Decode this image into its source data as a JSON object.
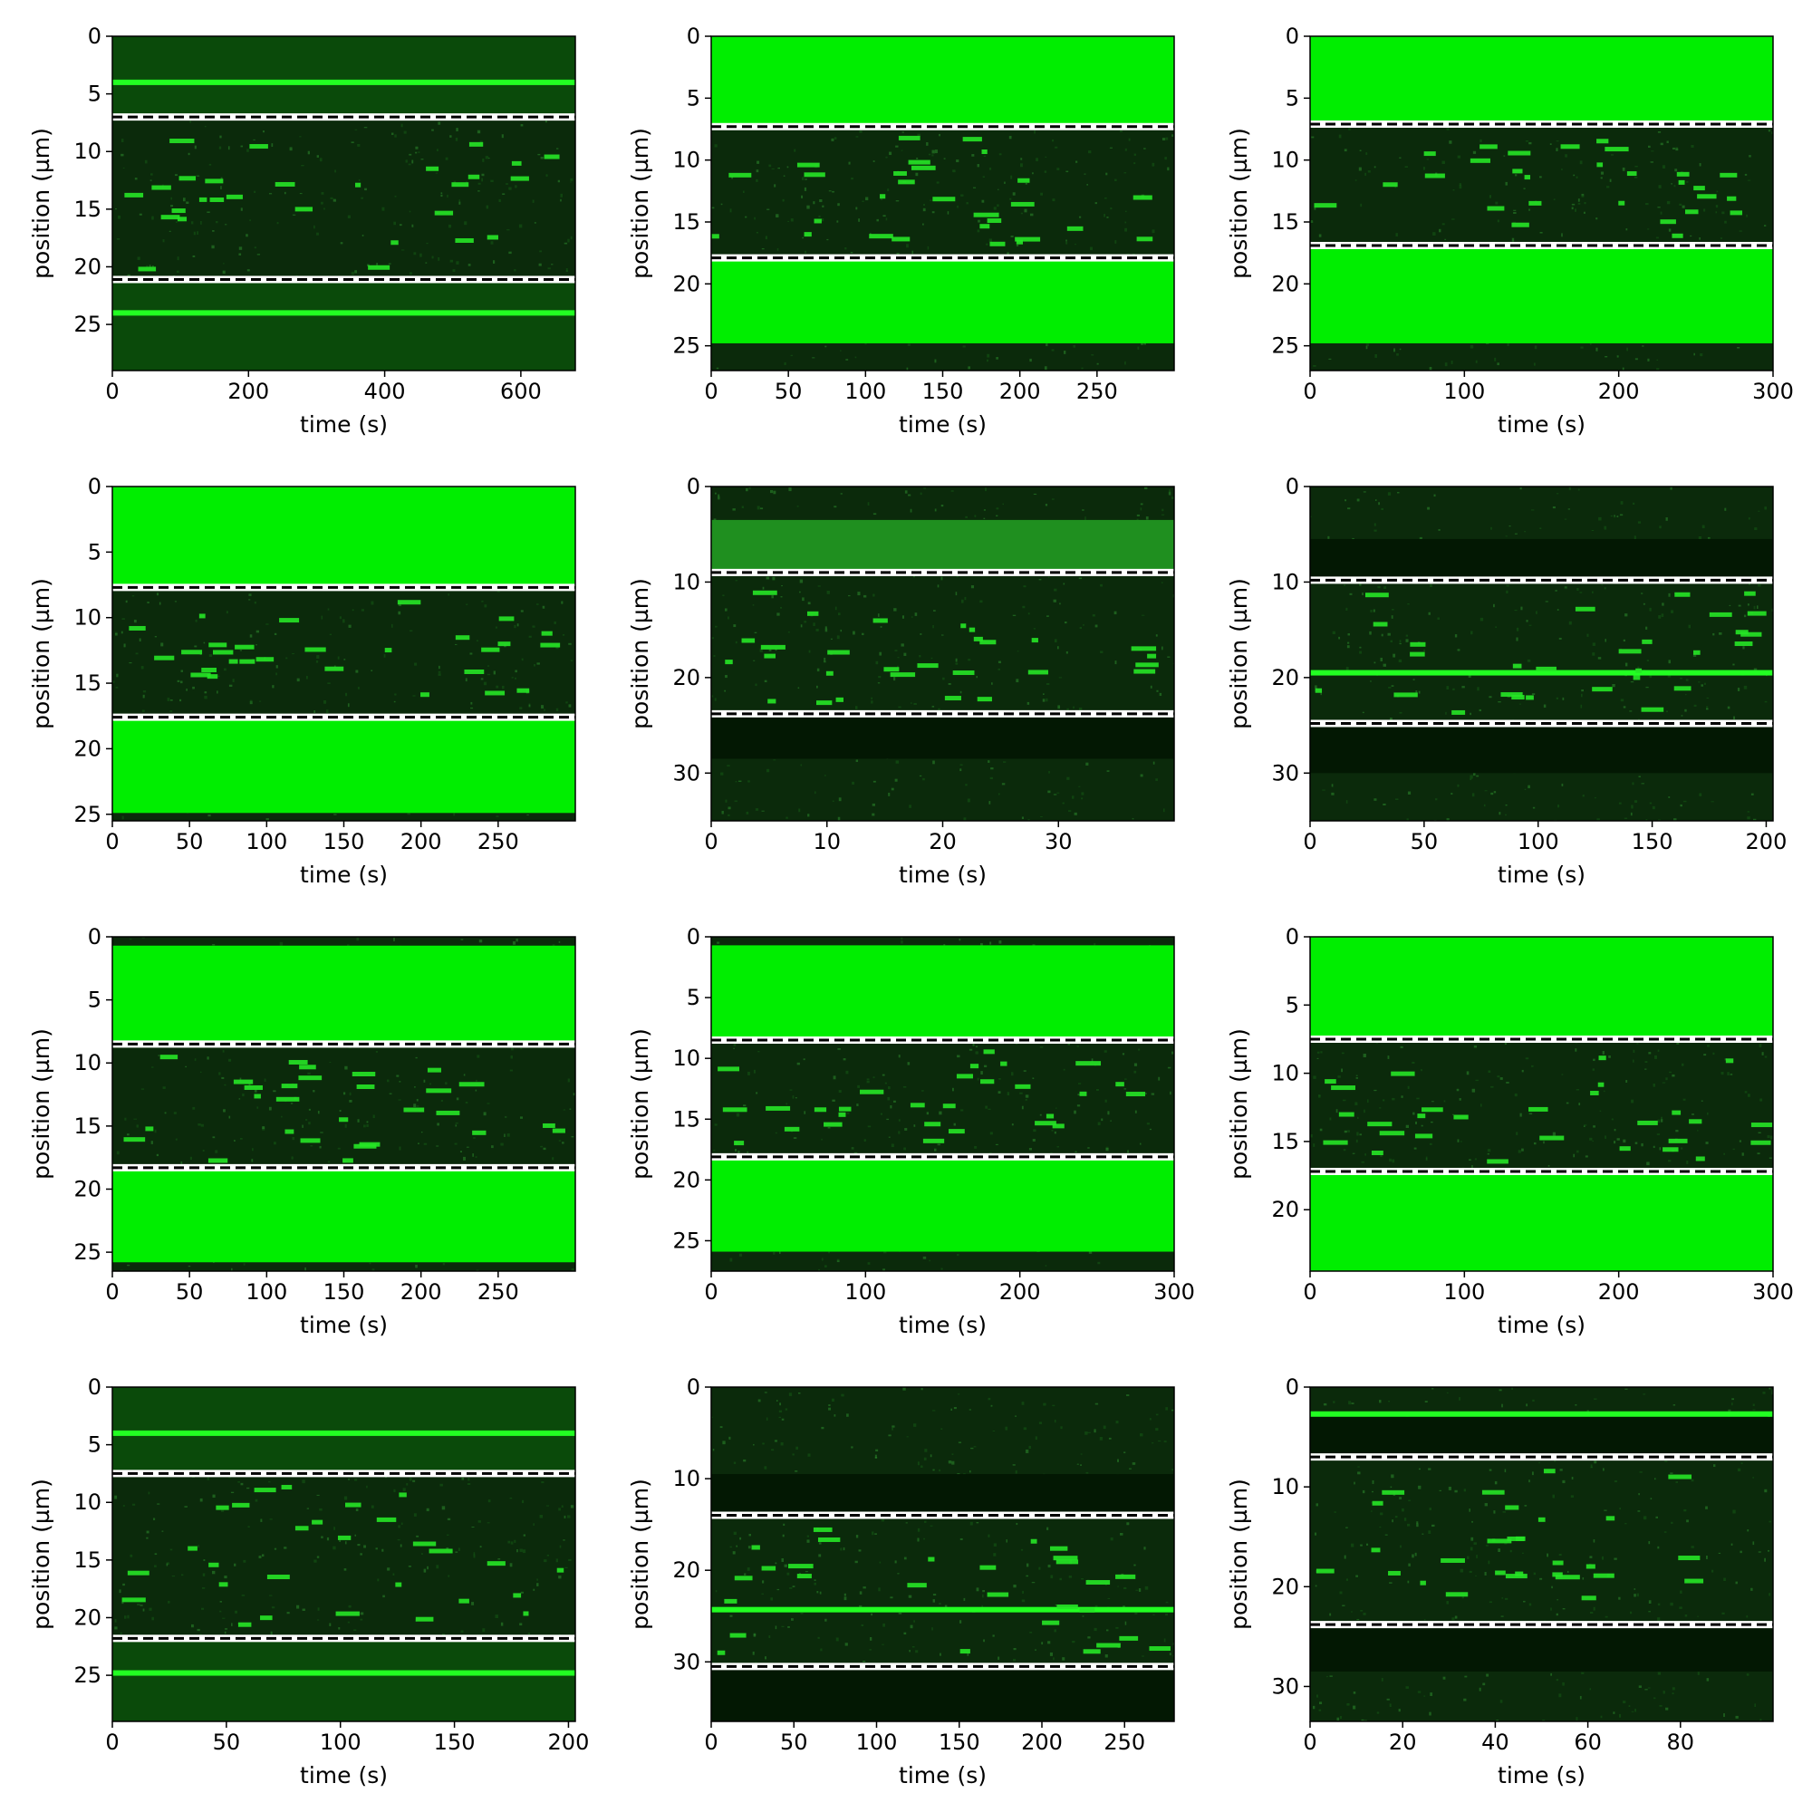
{
  "chart_data": [
    {
      "type": "heatmap",
      "xlabel": "time (s)",
      "ylabel": "position (µm)",
      "xlim": [
        0,
        680
      ],
      "ylim": [
        29,
        0
      ],
      "xticks": [
        0,
        200,
        400,
        600
      ],
      "yticks": [
        0,
        5,
        10,
        15,
        20,
        25
      ],
      "guides": [
        7.0,
        21.1
      ],
      "bands": [
        {
          "from": 0,
          "to": 7.0,
          "level": "dim"
        },
        {
          "from": 21.1,
          "to": 29,
          "level": "dim"
        }
      ],
      "lines": [
        {
          "y": 4.0
        },
        {
          "y": 24.0
        }
      ],
      "spots": []
    },
    {
      "type": "heatmap",
      "xlabel": "time (s)",
      "ylabel": "position (µm)",
      "xlim": [
        0,
        300
      ],
      "ylim": [
        27,
        0
      ],
      "xticks": [
        0,
        50,
        100,
        150,
        200,
        250
      ],
      "yticks": [
        0,
        5,
        10,
        15,
        20,
        25
      ],
      "guides": [
        7.3,
        17.9
      ],
      "bands": [
        {
          "from": 0,
          "to": 7.3,
          "level": "bright"
        },
        {
          "from": 17.9,
          "to": 24.8,
          "level": "bright"
        }
      ],
      "lines": [],
      "spots": []
    },
    {
      "type": "heatmap",
      "xlabel": "time (s)",
      "ylabel": "position (µm)",
      "xlim": [
        0,
        300
      ],
      "ylim": [
        27,
        0
      ],
      "xticks": [
        0,
        100,
        200,
        300
      ],
      "yticks": [
        0,
        5,
        10,
        15,
        20,
        25
      ],
      "guides": [
        7.1,
        16.9
      ],
      "bands": [
        {
          "from": 0,
          "to": 7.1,
          "level": "bright"
        },
        {
          "from": 16.9,
          "to": 24.8,
          "level": "bright"
        }
      ],
      "lines": [],
      "spots": []
    },
    {
      "type": "heatmap",
      "xlabel": "time (s)",
      "ylabel": "position (µm)",
      "xlim": [
        0,
        300
      ],
      "ylim": [
        25.5,
        0
      ],
      "xticks": [
        0,
        50,
        100,
        150,
        200,
        250
      ],
      "yticks": [
        0,
        5,
        10,
        15,
        20,
        25
      ],
      "guides": [
        7.7,
        17.6
      ],
      "bands": [
        {
          "from": 0,
          "to": 7.7,
          "level": "bright"
        },
        {
          "from": 17.6,
          "to": 24.9,
          "level": "bright"
        }
      ],
      "lines": [],
      "spots": []
    },
    {
      "type": "heatmap",
      "xlabel": "time (s)",
      "ylabel": "position (µm)",
      "xlim": [
        0,
        40
      ],
      "ylim": [
        35,
        0
      ],
      "xticks": [
        0,
        10,
        20,
        30
      ],
      "yticks": [
        0,
        10,
        20,
        30
      ],
      "guides": [
        9.0,
        23.8
      ],
      "bands": [
        {
          "from": 3.5,
          "to": 9.0,
          "level": "mid"
        },
        {
          "from": 23.8,
          "to": 28.5,
          "level": "dark"
        }
      ],
      "lines": [],
      "spots": []
    },
    {
      "type": "heatmap",
      "xlabel": "time (s)",
      "ylabel": "position (µm)",
      "xlim": [
        0,
        203
      ],
      "ylim": [
        35,
        0
      ],
      "xticks": [
        0,
        50,
        100,
        150,
        200
      ],
      "yticks": [
        0,
        10,
        20,
        30
      ],
      "guides": [
        9.8,
        24.8
      ],
      "bands": [
        {
          "from": 5.5,
          "to": 9.8,
          "level": "dark"
        },
        {
          "from": 24.8,
          "to": 30.0,
          "level": "dark"
        }
      ],
      "lines": [
        {
          "y": 19.5
        }
      ],
      "spots": []
    },
    {
      "type": "heatmap",
      "xlabel": "time (s)",
      "ylabel": "position (µm)",
      "xlim": [
        0,
        300
      ],
      "ylim": [
        26.5,
        0
      ],
      "xticks": [
        0,
        50,
        100,
        150,
        200,
        250
      ],
      "yticks": [
        0,
        5,
        10,
        15,
        20,
        25
      ],
      "guides": [
        8.5,
        18.3
      ],
      "bands": [
        {
          "from": 0.7,
          "to": 8.5,
          "level": "bright"
        },
        {
          "from": 18.3,
          "to": 25.8,
          "level": "bright"
        }
      ],
      "lines": [],
      "spots": []
    },
    {
      "type": "heatmap",
      "xlabel": "time (s)",
      "ylabel": "position (µm)",
      "xlim": [
        0,
        300
      ],
      "ylim": [
        27.5,
        0
      ],
      "xticks": [
        0,
        100,
        200,
        300
      ],
      "yticks": [
        0,
        5,
        10,
        15,
        20,
        25
      ],
      "guides": [
        8.5,
        18.1
      ],
      "bands": [
        {
          "from": 0.7,
          "to": 8.5,
          "level": "bright"
        },
        {
          "from": 18.1,
          "to": 25.9,
          "level": "bright"
        }
      ],
      "lines": [],
      "spots": []
    },
    {
      "type": "heatmap",
      "xlabel": "time (s)",
      "ylabel": "position (µm)",
      "xlim": [
        0,
        300
      ],
      "ylim": [
        24.5,
        0
      ],
      "xticks": [
        0,
        100,
        200,
        300
      ],
      "yticks": [
        0,
        5,
        10,
        15,
        20
      ],
      "guides": [
        7.5,
        17.2
      ],
      "bands": [
        {
          "from": 0,
          "to": 7.5,
          "level": "bright"
        },
        {
          "from": 17.2,
          "to": 24.5,
          "level": "bright"
        }
      ],
      "lines": [],
      "spots": []
    },
    {
      "type": "heatmap",
      "xlabel": "time (s)",
      "ylabel": "position (µm)",
      "xlim": [
        0,
        203
      ],
      "ylim": [
        29,
        0
      ],
      "xticks": [
        0,
        50,
        100,
        150,
        200
      ],
      "yticks": [
        0,
        5,
        10,
        15,
        20,
        25
      ],
      "guides": [
        7.5,
        21.8
      ],
      "bands": [
        {
          "from": 0,
          "to": 7.5,
          "level": "dim"
        },
        {
          "from": 21.8,
          "to": 29,
          "level": "dim"
        }
      ],
      "lines": [
        {
          "y": 4.0
        },
        {
          "y": 24.8
        }
      ],
      "spots": []
    },
    {
      "type": "heatmap",
      "xlabel": "time (s)",
      "ylabel": "position (µm)",
      "xlim": [
        0,
        280
      ],
      "ylim": [
        36.5,
        0
      ],
      "xticks": [
        0,
        50,
        100,
        150,
        200,
        250
      ],
      "yticks": [
        0,
        10,
        20,
        30
      ],
      "guides": [
        14.0,
        30.5
      ],
      "bands": [
        {
          "from": 9.5,
          "to": 14.0,
          "level": "dark"
        },
        {
          "from": 30.5,
          "to": 36.5,
          "level": "dark"
        }
      ],
      "lines": [
        {
          "y": 24.3
        }
      ],
      "spots": []
    },
    {
      "type": "heatmap",
      "xlabel": "time (s)",
      "ylabel": "position (µm)",
      "xlim": [
        0,
        100
      ],
      "ylim": [
        33.5,
        0
      ],
      "xticks": [
        0,
        20,
        40,
        60,
        80
      ],
      "yticks": [
        0,
        10,
        20,
        30
      ],
      "guides": [
        7.0,
        23.8
      ],
      "bands": [
        {
          "from": 3.0,
          "to": 7.0,
          "level": "dark"
        },
        {
          "from": 23.8,
          "to": 28.5,
          "level": "dark"
        }
      ],
      "lines": [
        {
          "y": 2.7
        }
      ],
      "spots": []
    }
  ]
}
